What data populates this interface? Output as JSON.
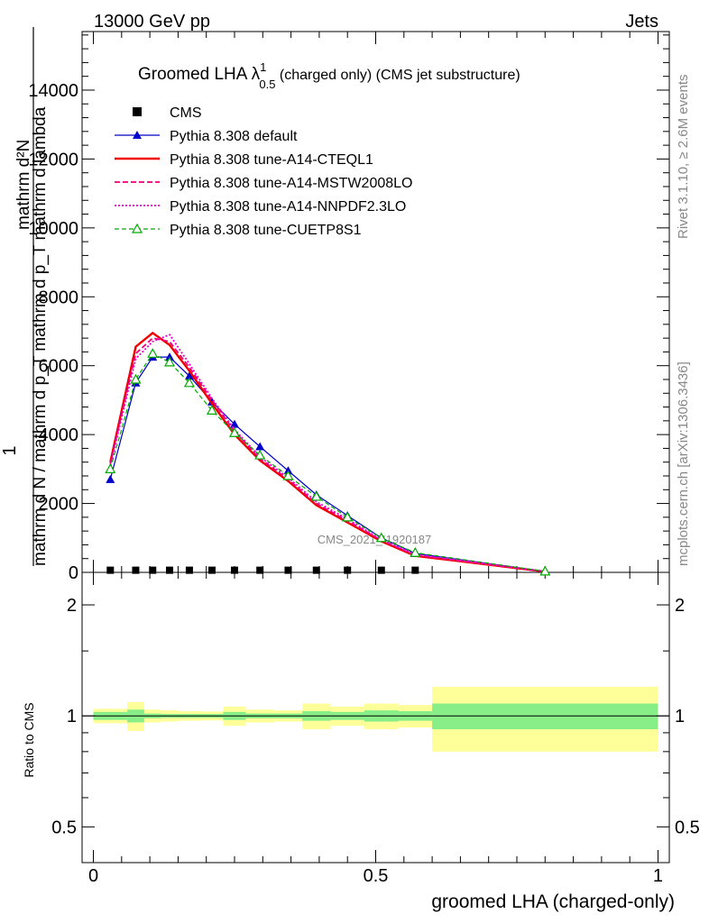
{
  "header": {
    "left": "13000 GeV pp",
    "right": "Jets"
  },
  "side_labels": {
    "rivet": "Rivet 3.1.10, ≥ 2.6M events",
    "mcplots": "mcplots.cern.ch [arXiv:1306.3436]"
  },
  "title": {
    "main": "Groomed LHA ",
    "lambda": "λ",
    "sup": "1",
    "sub": "0.5",
    "rest": " (charged only) (CMS jet substructure)"
  },
  "watermark": "CMS_2021_I1920187",
  "y_label_main": {
    "one": "1",
    "numerator": "mathrm d²N",
    "denominator": "mathrm d N / mathrm d p_T mathrm d p_T mathrm d lambda"
  },
  "y_label_ratio": "Ratio to CMS",
  "x_label": "groomed LHA (charged-only)",
  "legend": [
    {
      "label": "CMS",
      "color": "#000000",
      "style": "square"
    },
    {
      "label": "Pythia 8.308 default",
      "color": "#0000cc",
      "style": "solid-triangle"
    },
    {
      "label": "Pythia 8.308 tune-A14-CTEQL1",
      "color": "#ee0000",
      "style": "solid-thick"
    },
    {
      "label": "Pythia 8.308 tune-A14-MSTW2008LO",
      "color": "#ee0077",
      "style": "dashed"
    },
    {
      "label": "Pythia 8.308 tune-A14-NNPDF2.3LO",
      "color": "#ee00cc",
      "style": "dotted"
    },
    {
      "label": "Pythia 8.308 tune-CUETP8S1",
      "color": "#00aa00",
      "style": "dashed-open-triangle"
    }
  ],
  "chart_data": {
    "type": "line",
    "xlabel": "groomed LHA (charged-only)",
    "x_ticks": [
      "0",
      "0.5",
      "1"
    ],
    "y_ticks_main": [
      "0",
      "2000",
      "4000",
      "6000",
      "8000",
      "10000",
      "12000",
      "14000"
    ],
    "y_ticks_ratio": [
      "0.5",
      "1",
      "2"
    ],
    "xlim": [
      -0.02,
      1.02
    ],
    "ylim": [
      0,
      15700
    ],
    "ratio_ylim": [
      0.4,
      2.45
    ],
    "x": [
      0.03,
      0.075,
      0.105,
      0.135,
      0.17,
      0.21,
      0.25,
      0.295,
      0.345,
      0.395,
      0.45,
      0.51,
      0.57,
      0.8
    ],
    "cms_values": [
      10,
      10,
      10,
      10,
      10,
      10,
      10,
      10,
      10,
      10,
      10,
      10,
      10
    ],
    "cms_x": [
      0.03,
      0.075,
      0.105,
      0.135,
      0.17,
      0.21,
      0.25,
      0.295,
      0.345,
      0.395,
      0.45,
      0.51,
      0.57
    ],
    "series": [
      {
        "name": "Pythia 8.308 default",
        "color": "#0000cc",
        "dash": "",
        "width": 1.2,
        "marker": "filled-triangle",
        "values": [
          2700,
          5500,
          6250,
          6250,
          5700,
          4950,
          4300,
          3650,
          2950,
          2250,
          1650,
          1000,
          550,
          30
        ]
      },
      {
        "name": "Pythia 8.308 tune-A14-CTEQL1",
        "color": "#ee0000",
        "dash": "",
        "width": 2.4,
        "marker": "none",
        "values": [
          3200,
          6550,
          6950,
          6600,
          5850,
          4900,
          4000,
          3250,
          2650,
          1950,
          1450,
          900,
          480,
          20
        ]
      },
      {
        "name": "Pythia 8.308 tune-A14-MSTW2008LO",
        "color": "#ee0077",
        "dash": "6,3",
        "width": 1.8,
        "marker": "none",
        "values": [
          3150,
          6350,
          6800,
          6700,
          5950,
          5000,
          4100,
          3300,
          2700,
          2000,
          1500,
          930,
          500,
          25
        ]
      },
      {
        "name": "Pythia 8.308 tune-A14-NNPDF2.3LO",
        "color": "#ee00cc",
        "dash": "2,2",
        "width": 1.8,
        "marker": "none",
        "values": [
          3100,
          6200,
          6700,
          6900,
          6050,
          5050,
          4150,
          3350,
          2750,
          2050,
          1550,
          950,
          520,
          25
        ]
      },
      {
        "name": "Pythia 8.308 tune-CUETP8S1",
        "color": "#00aa00",
        "dash": "5,3",
        "width": 1.2,
        "marker": "open-triangle",
        "values": [
          3000,
          5600,
          6350,
          6100,
          5500,
          4700,
          4050,
          3400,
          2800,
          2200,
          1600,
          1000,
          570,
          30
        ]
      }
    ],
    "ratio_band_bins": [
      {
        "x0": 0.0,
        "x1": 0.06,
        "inner": 0.025,
        "outer": 0.045
      },
      {
        "x0": 0.06,
        "x1": 0.09,
        "inner": 0.04,
        "outer": 0.09
      },
      {
        "x0": 0.09,
        "x1": 0.12,
        "inner": 0.015,
        "outer": 0.04
      },
      {
        "x0": 0.12,
        "x1": 0.15,
        "inner": 0.012,
        "outer": 0.035
      },
      {
        "x0": 0.15,
        "x1": 0.19,
        "inner": 0.012,
        "outer": 0.03
      },
      {
        "x0": 0.19,
        "x1": 0.23,
        "inner": 0.012,
        "outer": 0.028
      },
      {
        "x0": 0.23,
        "x1": 0.27,
        "inner": 0.025,
        "outer": 0.06
      },
      {
        "x0": 0.27,
        "x1": 0.32,
        "inner": 0.015,
        "outer": 0.04
      },
      {
        "x0": 0.32,
        "x1": 0.37,
        "inner": 0.015,
        "outer": 0.035
      },
      {
        "x0": 0.37,
        "x1": 0.42,
        "inner": 0.03,
        "outer": 0.08
      },
      {
        "x0": 0.42,
        "x1": 0.48,
        "inner": 0.025,
        "outer": 0.06
      },
      {
        "x0": 0.48,
        "x1": 0.54,
        "inner": 0.035,
        "outer": 0.08
      },
      {
        "x0": 0.54,
        "x1": 0.6,
        "inner": 0.03,
        "outer": 0.07
      },
      {
        "x0": 0.6,
        "x1": 1.0,
        "inner": 0.08,
        "outer": 0.2
      }
    ],
    "colors": {
      "band_inner": "#88ee88",
      "band_outer": "#ffff99"
    }
  }
}
